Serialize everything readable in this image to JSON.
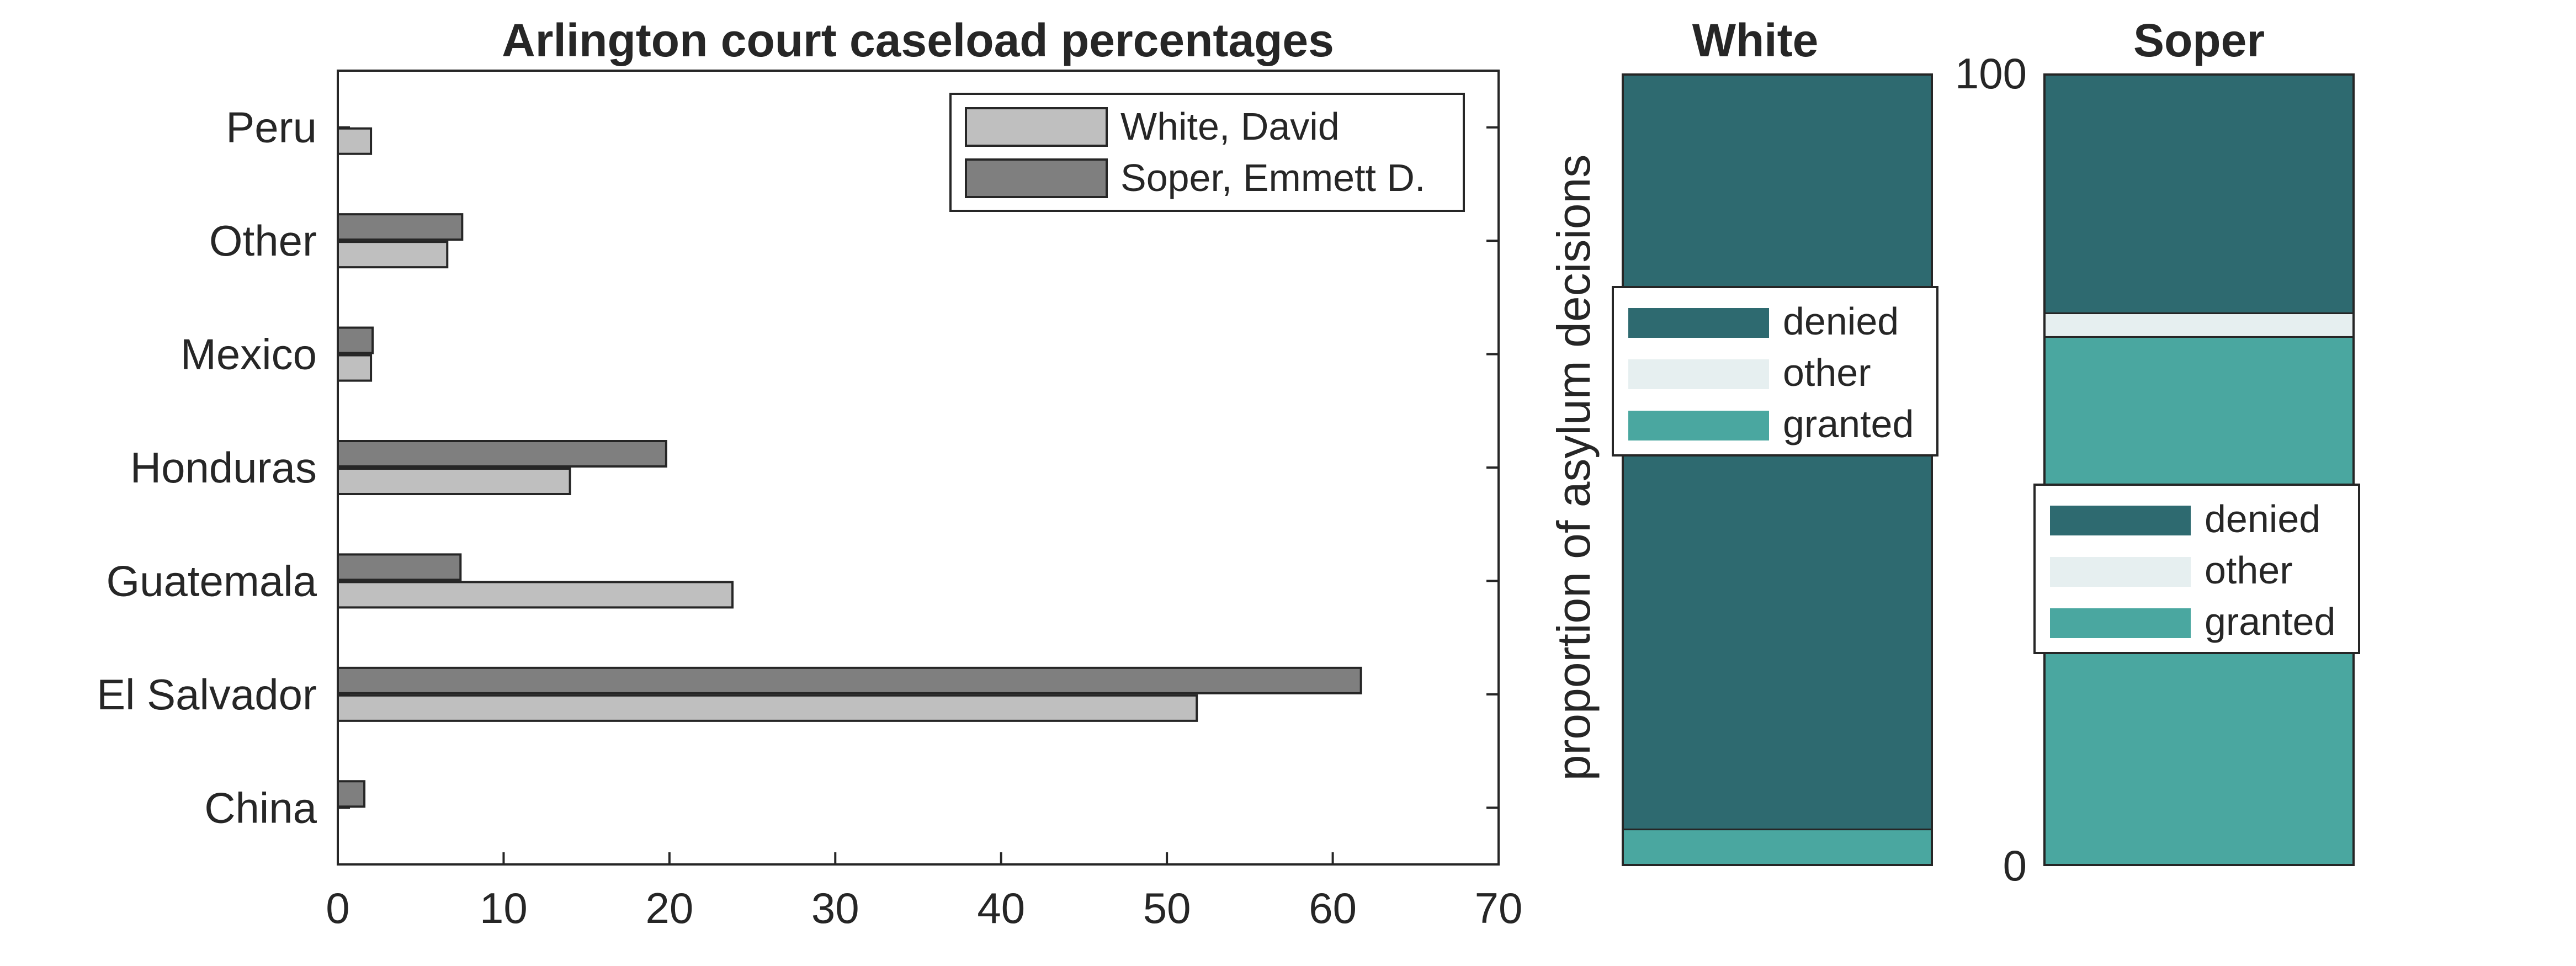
{
  "chart_data": [
    {
      "type": "bar",
      "orientation": "horizontal",
      "title": "Arlington court caseload percentages",
      "categories": [
        "China",
        "El Salvador",
        "Guatemala",
        "Honduras",
        "Mexico",
        "Other",
        "Peru"
      ],
      "series": [
        {
          "name": "White, David",
          "values": [
            0,
            51.8,
            23.8,
            14.0,
            2.0,
            6.6,
            2.0
          ],
          "color": "#bfbfbf"
        },
        {
          "name": "Soper, Emmett D.",
          "values": [
            1.6,
            61.7,
            7.4,
            19.8,
            2.1,
            7.5,
            0
          ],
          "color": "#7f7f7f"
        }
      ],
      "xlim": [
        0,
        70
      ],
      "xticks": [
        "0",
        "10",
        "20",
        "30",
        "40",
        "50",
        "60",
        "70"
      ],
      "legend_placement": "top-right",
      "grid": false
    },
    {
      "type": "bar",
      "stacked": true,
      "title": "White",
      "ylabel": "proportion of asylum decisions",
      "stack": [
        {
          "name": "granted",
          "value": 4.5,
          "color": "#4aa7a0"
        },
        {
          "name": "other",
          "value": 0,
          "color": "#e6eff0"
        },
        {
          "name": "denied",
          "value": 95.5,
          "color": "#2e6a70"
        }
      ],
      "ylim": [
        0,
        100
      ],
      "legend": [
        "denied",
        "other",
        "granted"
      ],
      "legend_placement": "upper-middle"
    },
    {
      "type": "bar",
      "stacked": true,
      "title": "Soper",
      "stack": [
        {
          "name": "granted",
          "value": 66.8,
          "color": "#4aa7a0"
        },
        {
          "name": "other",
          "value": 3.0,
          "color": "#e6eff0"
        },
        {
          "name": "denied",
          "value": 30.2,
          "color": "#2e6a70"
        }
      ],
      "ylim": [
        0,
        100
      ],
      "yticks": [
        "0",
        "100"
      ],
      "legend": [
        "denied",
        "other",
        "granted"
      ],
      "legend_placement": "middle"
    }
  ]
}
